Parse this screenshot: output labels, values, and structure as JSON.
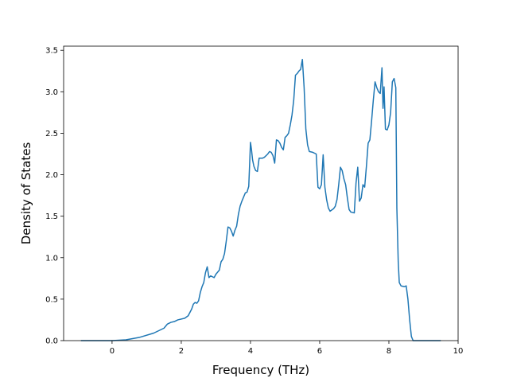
{
  "chart_data": {
    "type": "line",
    "title": "",
    "xlabel": "Frequency (THz)",
    "ylabel": "Density of States",
    "xlim": [
      -1.4,
      10
    ],
    "ylim": [
      0,
      3.55
    ],
    "xticks": [
      0,
      2,
      4,
      6,
      8,
      10
    ],
    "xtick_labels": [
      "0",
      "2",
      "4",
      "6",
      "8",
      "10"
    ],
    "yticks": [
      0.0,
      0.5,
      1.0,
      1.5,
      2.0,
      2.5,
      3.0,
      3.5
    ],
    "ytick_labels": [
      "0.0",
      "0.5",
      "1.0",
      "1.5",
      "2.0",
      "2.5",
      "3.0",
      "3.5"
    ],
    "grid": false,
    "legend": "none",
    "series": [
      {
        "color": "#1f77b4",
        "x": [
          -0.9,
          0.0,
          0.4,
          0.8,
          1.2,
          1.5,
          1.6,
          1.7,
          1.8,
          1.9,
          2.1,
          2.2,
          2.3,
          2.35,
          2.4,
          2.45,
          2.5,
          2.55,
          2.6,
          2.65,
          2.7,
          2.75,
          2.8,
          2.85,
          2.9,
          2.95,
          3.0,
          3.1,
          3.15,
          3.2,
          3.25,
          3.3,
          3.35,
          3.4,
          3.45,
          3.5,
          3.55,
          3.6,
          3.65,
          3.7,
          3.75,
          3.8,
          3.85,
          3.9,
          3.95,
          4.0,
          4.03,
          4.06,
          4.1,
          4.15,
          4.2,
          4.25,
          4.3,
          4.35,
          4.4,
          4.5,
          4.55,
          4.6,
          4.65,
          4.7,
          4.75,
          4.8,
          4.85,
          4.9,
          4.95,
          5.0,
          5.05,
          5.1,
          5.15,
          5.2,
          5.25,
          5.3,
          5.35,
          5.4,
          5.45,
          5.5,
          5.55,
          5.6,
          5.65,
          5.7,
          5.8,
          5.9,
          5.95,
          6.0,
          6.05,
          6.1,
          6.15,
          6.2,
          6.25,
          6.3,
          6.4,
          6.45,
          6.5,
          6.55,
          6.6,
          6.65,
          6.7,
          6.75,
          6.8,
          6.85,
          6.9,
          7.0,
          7.05,
          7.1,
          7.15,
          7.2,
          7.25,
          7.3,
          7.35,
          7.4,
          7.45,
          7.5,
          7.55,
          7.6,
          7.65,
          7.7,
          7.75,
          7.8,
          7.83,
          7.86,
          7.9,
          7.95,
          8.0,
          8.05,
          8.1,
          8.15,
          8.2,
          8.23,
          8.27,
          8.3,
          8.35,
          8.45,
          8.5,
          8.55,
          8.6,
          8.65,
          8.7,
          9.0,
          9.5
        ],
        "values": [
          0.0,
          0.0,
          0.01,
          0.04,
          0.09,
          0.15,
          0.2,
          0.22,
          0.23,
          0.25,
          0.27,
          0.3,
          0.38,
          0.44,
          0.46,
          0.45,
          0.48,
          0.58,
          0.65,
          0.7,
          0.82,
          0.89,
          0.76,
          0.78,
          0.77,
          0.76,
          0.8,
          0.85,
          0.95,
          0.98,
          1.05,
          1.2,
          1.37,
          1.36,
          1.32,
          1.26,
          1.33,
          1.38,
          1.52,
          1.62,
          1.68,
          1.73,
          1.78,
          1.79,
          1.86,
          2.39,
          2.3,
          2.18,
          2.1,
          2.05,
          2.04,
          2.2,
          2.2,
          2.2,
          2.21,
          2.25,
          2.28,
          2.27,
          2.23,
          2.14,
          2.42,
          2.41,
          2.38,
          2.33,
          2.3,
          2.45,
          2.47,
          2.5,
          2.6,
          2.72,
          2.9,
          3.2,
          3.22,
          3.25,
          3.27,
          3.39,
          3.05,
          2.55,
          2.36,
          2.28,
          2.27,
          2.25,
          1.85,
          1.83,
          1.88,
          2.24,
          1.85,
          1.7,
          1.6,
          1.56,
          1.59,
          1.62,
          1.7,
          1.88,
          2.09,
          2.05,
          1.95,
          1.88,
          1.72,
          1.58,
          1.55,
          1.54,
          1.9,
          2.09,
          1.68,
          1.72,
          1.88,
          1.85,
          2.1,
          2.38,
          2.42,
          2.65,
          2.9,
          3.12,
          3.05,
          3.0,
          2.98,
          3.29,
          2.8,
          3.06,
          2.55,
          2.54,
          2.6,
          2.75,
          3.12,
          3.16,
          3.05,
          1.6,
          0.95,
          0.7,
          0.66,
          0.65,
          0.66,
          0.5,
          0.25,
          0.05,
          0.0,
          0.0,
          0.0
        ]
      }
    ]
  }
}
